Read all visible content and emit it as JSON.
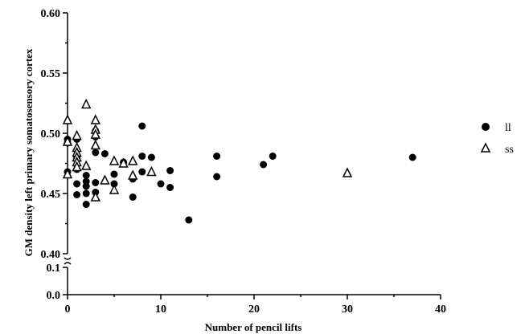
{
  "chart_data": {
    "type": "scatter",
    "xlabel": "Number of pencil lifts",
    "ylabel": "GM density left primary somatosensory cortex",
    "xlim": [
      0,
      40
    ],
    "x_ticks": [
      0,
      10,
      20,
      30,
      40
    ],
    "ylim_upper": [
      0.4,
      0.6
    ],
    "y_ticks_upper": [
      "0.60",
      "0.55",
      "0.50",
      "0.45",
      "0.40"
    ],
    "ylim_lower": [
      0.0,
      0.1
    ],
    "y_ticks_lower": [
      "0.1",
      "0.0"
    ],
    "axis_break": true,
    "grid": false,
    "legend_position": "right",
    "series": [
      {
        "name": "ll",
        "marker": "filled-circle",
        "points": [
          [
            0,
            0.468
          ],
          [
            0,
            0.492
          ],
          [
            0,
            0.495
          ],
          [
            1,
            0.449
          ],
          [
            1,
            0.458
          ],
          [
            1,
            0.47
          ],
          [
            1,
            0.48
          ],
          [
            1,
            0.486
          ],
          [
            1,
            0.495
          ],
          [
            2,
            0.441
          ],
          [
            2,
            0.45
          ],
          [
            2,
            0.456
          ],
          [
            2,
            0.46
          ],
          [
            2,
            0.465
          ],
          [
            3,
            0.451
          ],
          [
            3,
            0.459
          ],
          [
            3,
            0.484
          ],
          [
            3,
            0.497
          ],
          [
            3,
            0.502
          ],
          [
            4,
            0.483
          ],
          [
            5,
            0.458
          ],
          [
            5,
            0.466
          ],
          [
            6,
            0.476
          ],
          [
            7,
            0.447
          ],
          [
            7,
            0.462
          ],
          [
            8,
            0.468
          ],
          [
            8,
            0.481
          ],
          [
            8,
            0.506
          ],
          [
            9,
            0.48
          ],
          [
            10,
            0.458
          ],
          [
            11,
            0.455
          ],
          [
            11,
            0.469
          ],
          [
            13,
            0.428
          ],
          [
            16,
            0.464
          ],
          [
            16,
            0.481
          ],
          [
            21,
            0.474
          ],
          [
            22,
            0.481
          ],
          [
            37,
            0.48
          ]
        ]
      },
      {
        "name": "ss",
        "marker": "open-triangle",
        "points": [
          [
            0,
            0.511
          ],
          [
            0,
            0.493
          ],
          [
            0,
            0.466
          ],
          [
            1,
            0.498
          ],
          [
            1,
            0.488
          ],
          [
            1,
            0.484
          ],
          [
            1,
            0.48
          ],
          [
            1,
            0.476
          ],
          [
            1,
            0.472
          ],
          [
            2,
            0.524
          ],
          [
            2,
            0.473
          ],
          [
            3,
            0.511
          ],
          [
            3,
            0.503
          ],
          [
            3,
            0.499
          ],
          [
            3,
            0.49
          ],
          [
            3,
            0.447
          ],
          [
            4,
            0.461
          ],
          [
            5,
            0.477
          ],
          [
            5,
            0.453
          ],
          [
            6,
            0.475
          ],
          [
            7,
            0.477
          ],
          [
            7,
            0.465
          ],
          [
            9,
            0.468
          ],
          [
            30,
            0.467
          ]
        ]
      }
    ]
  }
}
